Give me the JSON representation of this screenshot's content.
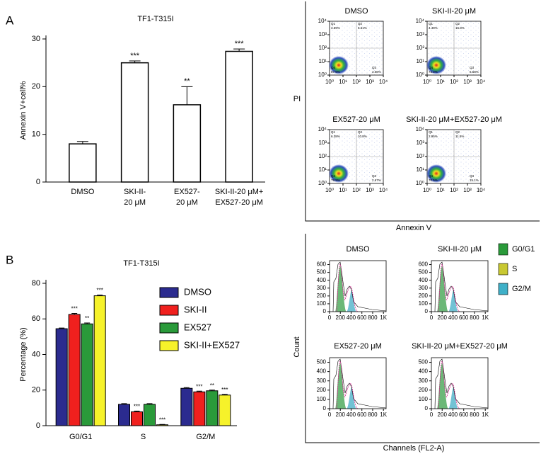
{
  "panel_labels": [
    "A",
    "B"
  ],
  "chart_data": [
    {
      "type": "bar",
      "title": "TF1-T315I",
      "y_label": "Annexin V+cell%",
      "categories": [
        [
          "DMSO"
        ],
        [
          "SKI-II-",
          "20 μM"
        ],
        [
          "EX527-",
          "20 μM"
        ],
        [
          "SKI-II-20 μM+",
          "EX527-20 μM"
        ]
      ],
      "values": [
        8,
        25,
        16.2,
        27.4
      ],
      "errors": [
        0.5,
        0.4,
        3.8,
        0.5
      ],
      "significance": [
        null,
        "***",
        "**",
        "***"
      ],
      "color": "#ffffff",
      "edge_color": "#000000",
      "ylim": [
        0,
        30
      ],
      "yticks": [
        0,
        10,
        20,
        30
      ]
    },
    {
      "type": "grouped_bar",
      "title": "TF1-T315I",
      "y_label": "Percentage (%)",
      "categories": [
        "G0/G1",
        "S",
        "G2/M"
      ],
      "series": [
        {
          "name": "DMSO",
          "color": "#2b2b8f",
          "values": [
            54.5,
            12,
            21
          ],
          "errors": [
            0.4,
            0.4,
            0.4
          ],
          "significance": [
            null,
            null,
            null
          ]
        },
        {
          "name": "SKI-II",
          "color": "#f0201e",
          "values": [
            62.5,
            7.8,
            19
          ],
          "errors": [
            0.6,
            0.4,
            0.4
          ],
          "significance": [
            "***",
            "***",
            "***"
          ]
        },
        {
          "name": "EX527",
          "color": "#2a9a3a",
          "values": [
            57.2,
            12,
            19.6
          ],
          "errors": [
            0.5,
            0.4,
            0.4
          ],
          "significance": [
            "**",
            null,
            "**"
          ]
        },
        {
          "name": "SKI-II+EX527",
          "color": "#f6f22a",
          "values": [
            73,
            0.5,
            17.2
          ],
          "errors": [
            0.4,
            0.2,
            0.4
          ],
          "significance": [
            "***",
            "***",
            "***"
          ]
        }
      ],
      "ylim": [
        0,
        80
      ],
      "yticks": [
        0,
        20,
        40,
        60,
        80
      ]
    }
  ],
  "flow_cytometry": {
    "x_label": "Annexin V",
    "y_label": "PI",
    "ticks": [
      {
        "value": 1,
        "label": "10⁰"
      },
      {
        "value": 10,
        "label": "10¹"
      },
      {
        "value": 100,
        "label": "10²"
      },
      {
        "value": 1000,
        "label": "10³"
      },
      {
        "value": 10000,
        "label": "10⁴"
      }
    ],
    "quadrants": [
      "Q1",
      "Q2",
      "Q3",
      "Q4"
    ],
    "panels": [
      {
        "title": "DMSO",
        "percents": [
          "3.69%",
          "5.61%",
          "3.08%",
          "87.6%"
        ]
      },
      {
        "title": "SKI-II-20 μM",
        "percents": [
          "4.49%",
          "15.8%",
          "6.58%",
          "73.2%"
        ]
      },
      {
        "title": "EX527-20 μM",
        "percents": [
          "6.38%",
          "10.8%",
          "2.67%",
          "79.9%"
        ]
      },
      {
        "title": "SKI-II-20 μM+EX527-20 μM",
        "percents": [
          "2.95%",
          "11.5%",
          "15.1%",
          "70.5%"
        ]
      }
    ]
  },
  "cell_cycle_histograms": {
    "x_label": "Channels (FL2-A)",
    "y_label": "Count",
    "xlim": [
      0,
      1050
    ],
    "xticks": [
      0,
      200,
      400,
      600,
      800,
      {
        "value": 1000,
        "label": "1K"
      }
    ],
    "legend": [
      {
        "name": "G0/G1",
        "color": "#2a9a3a"
      },
      {
        "name": "S",
        "color": "#c8c832"
      },
      {
        "name": "G2/M",
        "color": "#3fb0c8"
      }
    ],
    "panels": [
      {
        "title": "DMSO",
        "ylim": [
          0,
          650
        ],
        "yticks": [
          0,
          100,
          200,
          300,
          400,
          500,
          600
        ]
      },
      {
        "title": "SKI-II-20 μM",
        "ylim": [
          0,
          650
        ],
        "yticks": [
          0,
          100,
          200,
          300,
          400,
          500,
          600
        ]
      },
      {
        "title": "EX527-20 μM",
        "ylim": [
          0,
          550
        ],
        "yticks": [
          0,
          100,
          200,
          300,
          400,
          500
        ]
      },
      {
        "title": "SKI-II-20 μM+EX527-20 μM",
        "ylim": [
          0,
          550
        ],
        "yticks": [
          0,
          100,
          200,
          300,
          400,
          500
        ]
      }
    ]
  }
}
